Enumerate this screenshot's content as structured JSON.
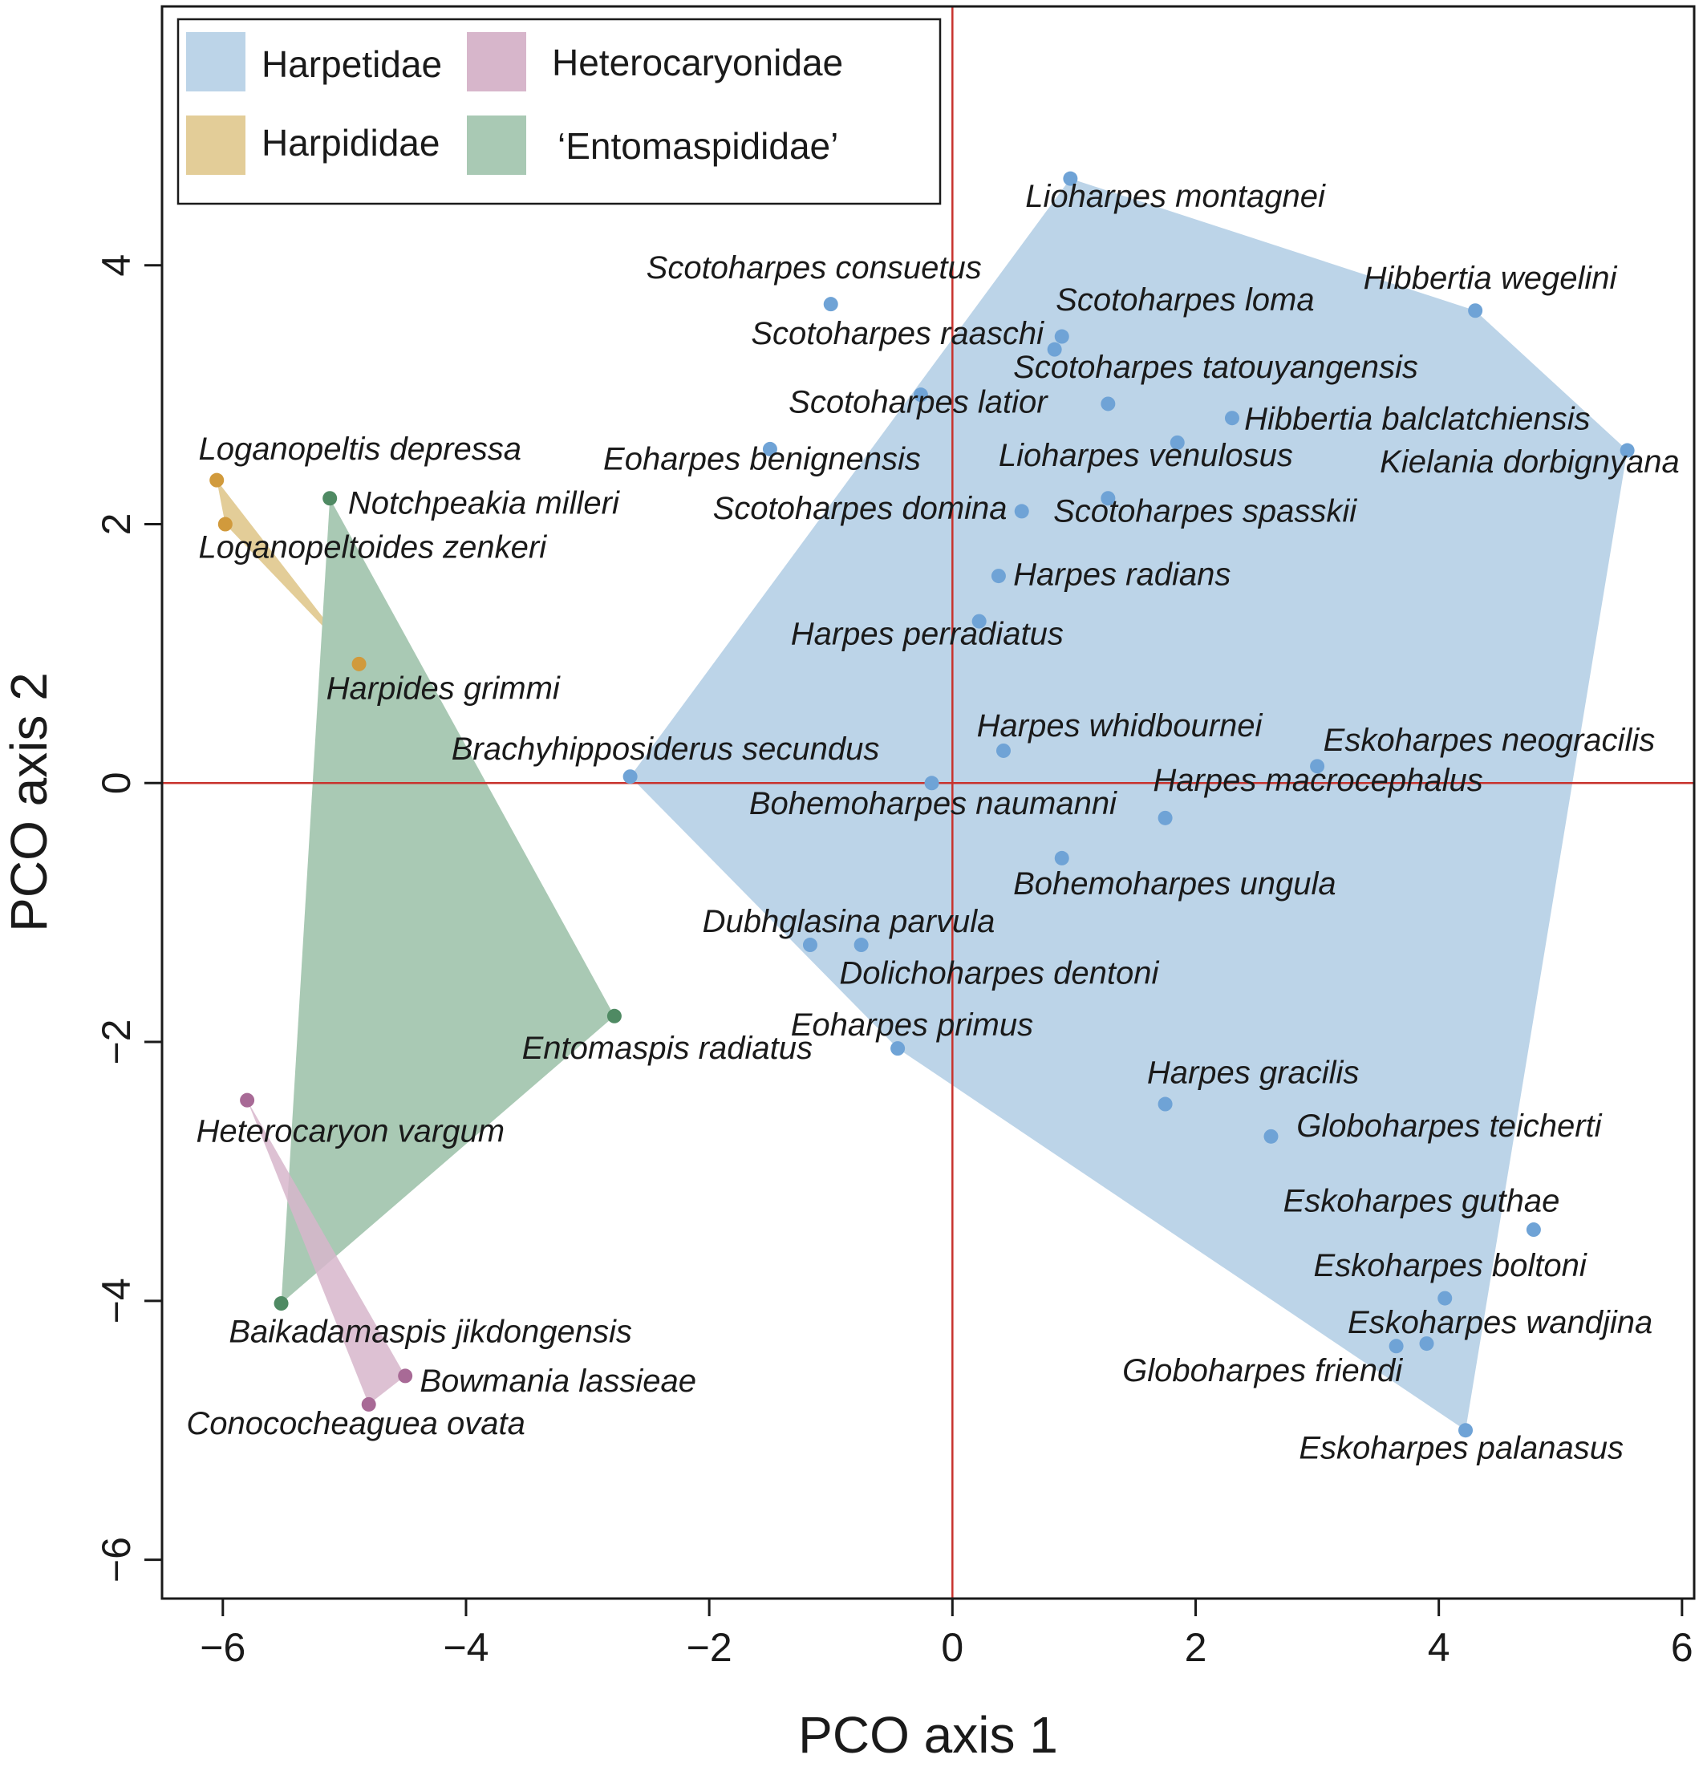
{
  "chart_data": {
    "type": "scatter",
    "xlabel": "PCO axis 1",
    "ylabel": "PCO axis 2",
    "xlim": [
      -6.5,
      6.1
    ],
    "ylim": [
      -6.3,
      6.0
    ],
    "xticks": [
      -6,
      -4,
      -2,
      0,
      2,
      4,
      6
    ],
    "yticks": [
      -6,
      -4,
      -2,
      0,
      2,
      4
    ],
    "xtick_labels": [
      "−6",
      "−4",
      "−2",
      "0",
      "2",
      "4",
      "6"
    ],
    "ytick_labels": [
      "−6",
      "−4",
      "−2",
      "0",
      "2",
      "4"
    ],
    "reference_lines": {
      "x": 0,
      "y": 0,
      "color": "#c8332e"
    },
    "legend": {
      "placement": "top-left",
      "entries": [
        {
          "label": "Harpetidae",
          "group": "harpetidae"
        },
        {
          "label": "Heterocaryonidae",
          "group": "heterocaryonidae"
        },
        {
          "label": "Harpididae",
          "group": "harpididae"
        },
        {
          "label": "‘Entomaspididae’",
          "group": "entomaspididae"
        }
      ]
    },
    "groups": {
      "harpetidae": {
        "fill": "#bcd4e8",
        "point": "#6fa3d6",
        "hull": [
          [
            0.97,
            4.67
          ],
          [
            4.3,
            3.65
          ],
          [
            5.55,
            2.57
          ],
          [
            4.22,
            -5.0
          ],
          [
            -0.45,
            -2.05
          ],
          [
            -2.65,
            0.05
          ]
        ]
      },
      "harpididae": {
        "fill": "#e3cd98",
        "point": "#d19a3c",
        "hull": [
          [
            -6.05,
            2.34
          ],
          [
            -4.88,
            0.92
          ],
          [
            -5.98,
            2.0
          ]
        ]
      },
      "heterocaryonidae": {
        "fill": "#d7b6cb",
        "point": "#a86a96",
        "hull": [
          [
            -5.8,
            -2.45
          ],
          [
            -4.5,
            -4.58
          ],
          [
            -4.8,
            -4.8
          ]
        ]
      },
      "entomaspididae": {
        "fill": "#a9c9b4",
        "point": "#4f8a63",
        "hull": [
          [
            -5.12,
            2.2
          ],
          [
            -2.78,
            -1.8
          ],
          [
            -5.52,
            -4.02
          ]
        ]
      }
    },
    "points": [
      {
        "name": "Lioharpes montagnei",
        "group": "harpetidae",
        "x": 0.97,
        "y": 4.67,
        "label_x": 0.6,
        "label_y": 4.45,
        "anchor": "start"
      },
      {
        "name": "Scotoharpes consuetus",
        "group": "harpetidae",
        "x": -1.0,
        "y": 3.7,
        "label_x": 0.24,
        "label_y": 3.9,
        "anchor": "end"
      },
      {
        "name": "Scotoharpes loma",
        "group": "harpetidae",
        "x": 0.9,
        "y": 3.45,
        "label_x": 0.85,
        "label_y": 3.65,
        "anchor": "start"
      },
      {
        "name": "Scotoharpes raaschi",
        "group": "harpetidae",
        "x": 0.84,
        "y": 3.35,
        "label_x": 0.75,
        "label_y": 3.39,
        "anchor": "end"
      },
      {
        "name": "Hibbertia wegelini",
        "group": "harpetidae",
        "x": 4.3,
        "y": 3.65,
        "label_x": 3.38,
        "label_y": 3.82,
        "anchor": "start"
      },
      {
        "name": "Scotoharpes tatouyangensis",
        "group": "harpetidae",
        "x": 1.28,
        "y": 2.93,
        "label_x": 0.5,
        "label_y": 3.13,
        "anchor": "start"
      },
      {
        "name": "Scotoharpes latior",
        "group": "harpetidae",
        "x": -0.26,
        "y": 3.0,
        "label_x": 0.78,
        "label_y": 2.86,
        "anchor": "end"
      },
      {
        "name": "Hibbertia balclatchiensis",
        "group": "harpetidae",
        "x": 2.3,
        "y": 2.82,
        "label_x": 2.4,
        "label_y": 2.73,
        "anchor": "start"
      },
      {
        "name": "Kielania dorbignyana",
        "group": "harpetidae",
        "x": 5.55,
        "y": 2.57,
        "label_x": 5.98,
        "label_y": 2.4,
        "anchor": "end"
      },
      {
        "name": "Eoharpes benignensis",
        "group": "harpetidae",
        "x": -1.5,
        "y": 2.58,
        "label_x": -0.26,
        "label_y": 2.42,
        "anchor": "end"
      },
      {
        "name": "Lioharpes venulosus",
        "group": "harpetidae",
        "x": 1.85,
        "y": 2.63,
        "label_x": 0.38,
        "label_y": 2.45,
        "anchor": "start"
      },
      {
        "name": "Scotoharpes domina",
        "group": "harpetidae",
        "x": 0.57,
        "y": 2.1,
        "label_x": 0.45,
        "label_y": 2.04,
        "anchor": "end"
      },
      {
        "name": "Scotoharpes spasskii",
        "group": "harpetidae",
        "x": 1.28,
        "y": 2.2,
        "label_x": 0.83,
        "label_y": 2.02,
        "anchor": "start"
      },
      {
        "name": "Harpes radians",
        "group": "harpetidae",
        "x": 0.38,
        "y": 1.6,
        "label_x": 0.5,
        "label_y": 1.53,
        "anchor": "start"
      },
      {
        "name": "Harpes perradiatus",
        "group": "harpetidae",
        "x": 0.22,
        "y": 1.25,
        "label_x": -1.33,
        "label_y": 1.07,
        "anchor": "start"
      },
      {
        "name": "Harpes whidbournei",
        "group": "harpetidae",
        "x": 0.42,
        "y": 0.25,
        "label_x": 0.2,
        "label_y": 0.36,
        "anchor": "start"
      },
      {
        "name": "Eskoharpes neogracilis",
        "group": "harpetidae",
        "x": 3.0,
        "y": 0.13,
        "label_x": 3.05,
        "label_y": 0.25,
        "anchor": "start"
      },
      {
        "name": "Brachyhipposiderus secundus",
        "group": "harpetidae",
        "x": -2.65,
        "y": 0.05,
        "label_x": -0.6,
        "label_y": 0.18,
        "anchor": "end"
      },
      {
        "name": "Bohemoharpes naumanni",
        "group": "harpetidae",
        "x": -0.17,
        "y": 0.0,
        "label_x": 1.35,
        "label_y": -0.24,
        "anchor": "end"
      },
      {
        "name": "Harpes macrocephalus",
        "group": "harpetidae",
        "x": 1.75,
        "y": -0.27,
        "label_x": 1.65,
        "label_y": -0.06,
        "anchor": "start"
      },
      {
        "name": "Bohemoharpes ungula",
        "group": "harpetidae",
        "x": 0.9,
        "y": -0.58,
        "label_x": 0.5,
        "label_y": -0.86,
        "anchor": "start"
      },
      {
        "name": "Dubhglasina parvula",
        "group": "harpetidae",
        "x": -1.17,
        "y": -1.25,
        "label_x": 0.35,
        "label_y": -1.15,
        "anchor": "end"
      },
      {
        "name": "Dolichoharpes dentoni",
        "group": "harpetidae",
        "x": -0.75,
        "y": -1.25,
        "label_x": -0.93,
        "label_y": -1.55,
        "anchor": "start"
      },
      {
        "name": "Eoharpes primus",
        "group": "harpetidae",
        "x": -0.45,
        "y": -2.05,
        "label_x": -1.33,
        "label_y": -1.95,
        "anchor": "start"
      },
      {
        "name": "Harpes gracilis",
        "group": "harpetidae",
        "x": 1.75,
        "y": -2.48,
        "label_x": 1.6,
        "label_y": -2.32,
        "anchor": "start"
      },
      {
        "name": "Globoharpes teicherti",
        "group": "harpetidae",
        "x": 2.62,
        "y": -2.73,
        "label_x": 2.83,
        "label_y": -2.73,
        "anchor": "start"
      },
      {
        "name": "Eskoharpes guthae",
        "group": "harpetidae",
        "x": 4.78,
        "y": -3.45,
        "label_x": 2.72,
        "label_y": -3.31,
        "anchor": "start"
      },
      {
        "name": "Eskoharpes boltoni",
        "group": "harpetidae",
        "x": 4.05,
        "y": -3.98,
        "label_x": 2.97,
        "label_y": -3.81,
        "anchor": "start"
      },
      {
        "name": "Eskoharpes wandjina",
        "group": "harpetidae",
        "x": 3.9,
        "y": -4.33,
        "label_x": 3.25,
        "label_y": -4.25,
        "anchor": "start"
      },
      {
        "name": "Globoharpes friendi",
        "group": "harpetidae",
        "x": 3.65,
        "y": -4.35,
        "label_x": 3.7,
        "label_y": -4.62,
        "anchor": "end"
      },
      {
        "name": "Eskoharpes palanasus",
        "group": "harpetidae",
        "x": 4.22,
        "y": -5.0,
        "label_x": 2.85,
        "label_y": -5.22,
        "anchor": "start"
      },
      {
        "name": "Loganopeltis depressa",
        "group": "harpididae",
        "x": -6.05,
        "y": 2.34,
        "label_x": -6.2,
        "label_y": 2.5,
        "anchor": "start"
      },
      {
        "name": "Loganopeltoides zenkeri",
        "group": "harpididae",
        "x": -5.98,
        "y": 2.0,
        "label_x": -6.2,
        "label_y": 1.74,
        "anchor": "start"
      },
      {
        "name": "Harpides grimmi",
        "group": "harpididae",
        "x": -4.88,
        "y": 0.92,
        "label_x": -5.15,
        "label_y": 0.65,
        "anchor": "start"
      },
      {
        "name": "Notchpeakia milleri",
        "group": "entomaspididae",
        "x": -5.12,
        "y": 2.2,
        "label_x": -4.97,
        "label_y": 2.08,
        "anchor": "start"
      },
      {
        "name": "Entomaspis radiatus",
        "group": "entomaspididae",
        "x": -2.78,
        "y": -1.8,
        "label_x": -1.15,
        "label_y": -2.13,
        "anchor": "end"
      },
      {
        "name": "Heterocaryon vargum",
        "group": "heterocaryonidae",
        "x": -5.8,
        "y": -2.45,
        "label_x": -6.22,
        "label_y": -2.77,
        "anchor": "start"
      },
      {
        "name": "Baikadamaspis jikdongensis",
        "group": "entomaspididae",
        "x": -5.52,
        "y": -4.02,
        "label_x": -5.95,
        "label_y": -4.32,
        "anchor": "start"
      },
      {
        "name": "Bowmania lassieae",
        "group": "heterocaryonidae",
        "x": -4.5,
        "y": -4.58,
        "label_x": -4.38,
        "label_y": -4.7,
        "anchor": "start"
      },
      {
        "name": "Conococheaguea ovata",
        "group": "heterocaryonidae",
        "x": -4.8,
        "y": -4.8,
        "label_x": -6.3,
        "label_y": -5.03,
        "anchor": "start"
      }
    ]
  }
}
